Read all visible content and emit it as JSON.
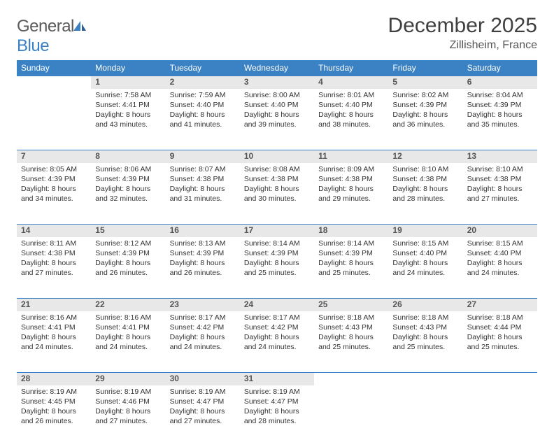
{
  "logo": {
    "text_general": "General",
    "text_blue": "Blue"
  },
  "title": "December 2025",
  "location": "Zillisheim, France",
  "colors": {
    "header_bg": "#3b82c4",
    "header_text": "#ffffff",
    "daynum_bg": "#e8e8e8",
    "border": "#3b7fc4",
    "text": "#333333",
    "title_text": "#404040"
  },
  "day_headers": [
    "Sunday",
    "Monday",
    "Tuesday",
    "Wednesday",
    "Thursday",
    "Friday",
    "Saturday"
  ],
  "weeks": [
    [
      null,
      {
        "n": "1",
        "sunrise": "7:58 AM",
        "sunset": "4:41 PM",
        "daylight": "8 hours and 43 minutes."
      },
      {
        "n": "2",
        "sunrise": "7:59 AM",
        "sunset": "4:40 PM",
        "daylight": "8 hours and 41 minutes."
      },
      {
        "n": "3",
        "sunrise": "8:00 AM",
        "sunset": "4:40 PM",
        "daylight": "8 hours and 39 minutes."
      },
      {
        "n": "4",
        "sunrise": "8:01 AM",
        "sunset": "4:40 PM",
        "daylight": "8 hours and 38 minutes."
      },
      {
        "n": "5",
        "sunrise": "8:02 AM",
        "sunset": "4:39 PM",
        "daylight": "8 hours and 36 minutes."
      },
      {
        "n": "6",
        "sunrise": "8:04 AM",
        "sunset": "4:39 PM",
        "daylight": "8 hours and 35 minutes."
      }
    ],
    [
      {
        "n": "7",
        "sunrise": "8:05 AM",
        "sunset": "4:39 PM",
        "daylight": "8 hours and 34 minutes."
      },
      {
        "n": "8",
        "sunrise": "8:06 AM",
        "sunset": "4:39 PM",
        "daylight": "8 hours and 32 minutes."
      },
      {
        "n": "9",
        "sunrise": "8:07 AM",
        "sunset": "4:38 PM",
        "daylight": "8 hours and 31 minutes."
      },
      {
        "n": "10",
        "sunrise": "8:08 AM",
        "sunset": "4:38 PM",
        "daylight": "8 hours and 30 minutes."
      },
      {
        "n": "11",
        "sunrise": "8:09 AM",
        "sunset": "4:38 PM",
        "daylight": "8 hours and 29 minutes."
      },
      {
        "n": "12",
        "sunrise": "8:10 AM",
        "sunset": "4:38 PM",
        "daylight": "8 hours and 28 minutes."
      },
      {
        "n": "13",
        "sunrise": "8:10 AM",
        "sunset": "4:38 PM",
        "daylight": "8 hours and 27 minutes."
      }
    ],
    [
      {
        "n": "14",
        "sunrise": "8:11 AM",
        "sunset": "4:38 PM",
        "daylight": "8 hours and 27 minutes."
      },
      {
        "n": "15",
        "sunrise": "8:12 AM",
        "sunset": "4:39 PM",
        "daylight": "8 hours and 26 minutes."
      },
      {
        "n": "16",
        "sunrise": "8:13 AM",
        "sunset": "4:39 PM",
        "daylight": "8 hours and 26 minutes."
      },
      {
        "n": "17",
        "sunrise": "8:14 AM",
        "sunset": "4:39 PM",
        "daylight": "8 hours and 25 minutes."
      },
      {
        "n": "18",
        "sunrise": "8:14 AM",
        "sunset": "4:39 PM",
        "daylight": "8 hours and 25 minutes."
      },
      {
        "n": "19",
        "sunrise": "8:15 AM",
        "sunset": "4:40 PM",
        "daylight": "8 hours and 24 minutes."
      },
      {
        "n": "20",
        "sunrise": "8:15 AM",
        "sunset": "4:40 PM",
        "daylight": "8 hours and 24 minutes."
      }
    ],
    [
      {
        "n": "21",
        "sunrise": "8:16 AM",
        "sunset": "4:41 PM",
        "daylight": "8 hours and 24 minutes."
      },
      {
        "n": "22",
        "sunrise": "8:16 AM",
        "sunset": "4:41 PM",
        "daylight": "8 hours and 24 minutes."
      },
      {
        "n": "23",
        "sunrise": "8:17 AM",
        "sunset": "4:42 PM",
        "daylight": "8 hours and 24 minutes."
      },
      {
        "n": "24",
        "sunrise": "8:17 AM",
        "sunset": "4:42 PM",
        "daylight": "8 hours and 24 minutes."
      },
      {
        "n": "25",
        "sunrise": "8:18 AM",
        "sunset": "4:43 PM",
        "daylight": "8 hours and 25 minutes."
      },
      {
        "n": "26",
        "sunrise": "8:18 AM",
        "sunset": "4:43 PM",
        "daylight": "8 hours and 25 minutes."
      },
      {
        "n": "27",
        "sunrise": "8:18 AM",
        "sunset": "4:44 PM",
        "daylight": "8 hours and 25 minutes."
      }
    ],
    [
      {
        "n": "28",
        "sunrise": "8:19 AM",
        "sunset": "4:45 PM",
        "daylight": "8 hours and 26 minutes."
      },
      {
        "n": "29",
        "sunrise": "8:19 AM",
        "sunset": "4:46 PM",
        "daylight": "8 hours and 27 minutes."
      },
      {
        "n": "30",
        "sunrise": "8:19 AM",
        "sunset": "4:47 PM",
        "daylight": "8 hours and 27 minutes."
      },
      {
        "n": "31",
        "sunrise": "8:19 AM",
        "sunset": "4:47 PM",
        "daylight": "8 hours and 28 minutes."
      },
      null,
      null,
      null
    ]
  ],
  "labels": {
    "sunrise": "Sunrise:",
    "sunset": "Sunset:",
    "daylight": "Daylight:"
  }
}
